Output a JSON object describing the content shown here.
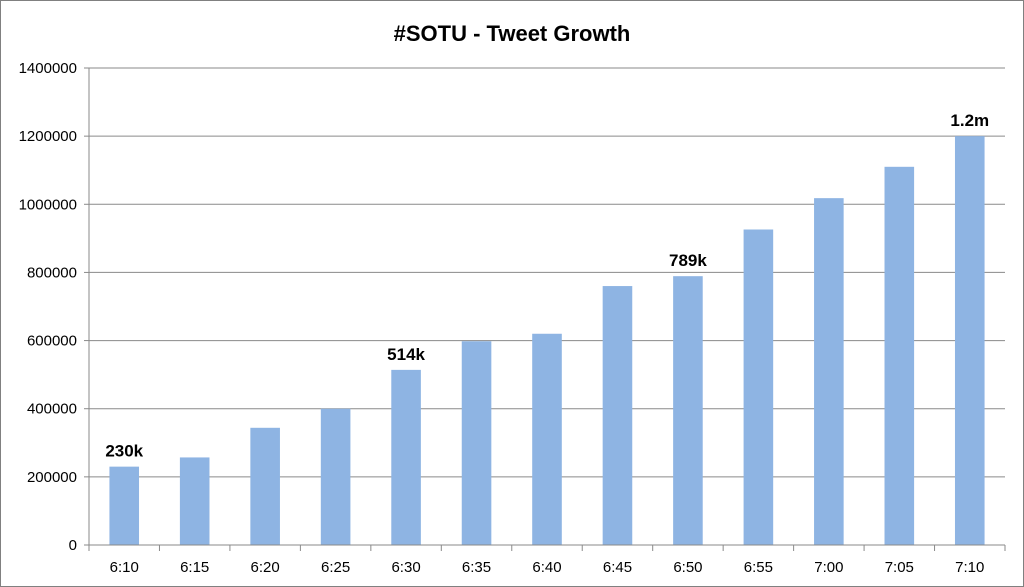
{
  "chart_data": {
    "type": "bar",
    "title": "#SOTU - Tweet Growth",
    "xlabel": "",
    "ylabel": "",
    "categories": [
      "6:10",
      "6:15",
      "6:20",
      "6:25",
      "6:30",
      "6:35",
      "6:40",
      "6:45",
      "6:50",
      "6:55",
      "7:00",
      "7:05",
      "7:10"
    ],
    "values": [
      230000,
      257000,
      344000,
      400000,
      514000,
      598000,
      620000,
      760000,
      789000,
      926000,
      1018000,
      1110000,
      1200000
    ],
    "ylim": [
      0,
      1400000
    ],
    "yticks": [
      "0",
      "200000",
      "400000",
      "600000",
      "800000",
      "1000000",
      "1200000",
      "1400000"
    ],
    "data_labels": [
      {
        "category": "6:10",
        "text": "230k"
      },
      {
        "category": "6:30",
        "text": "514k"
      },
      {
        "category": "6:50",
        "text": "789k"
      },
      {
        "category": "7:10",
        "text": "1.2m"
      }
    ],
    "bar_color": "#8eb4e3",
    "grid": true,
    "legend": "none"
  }
}
